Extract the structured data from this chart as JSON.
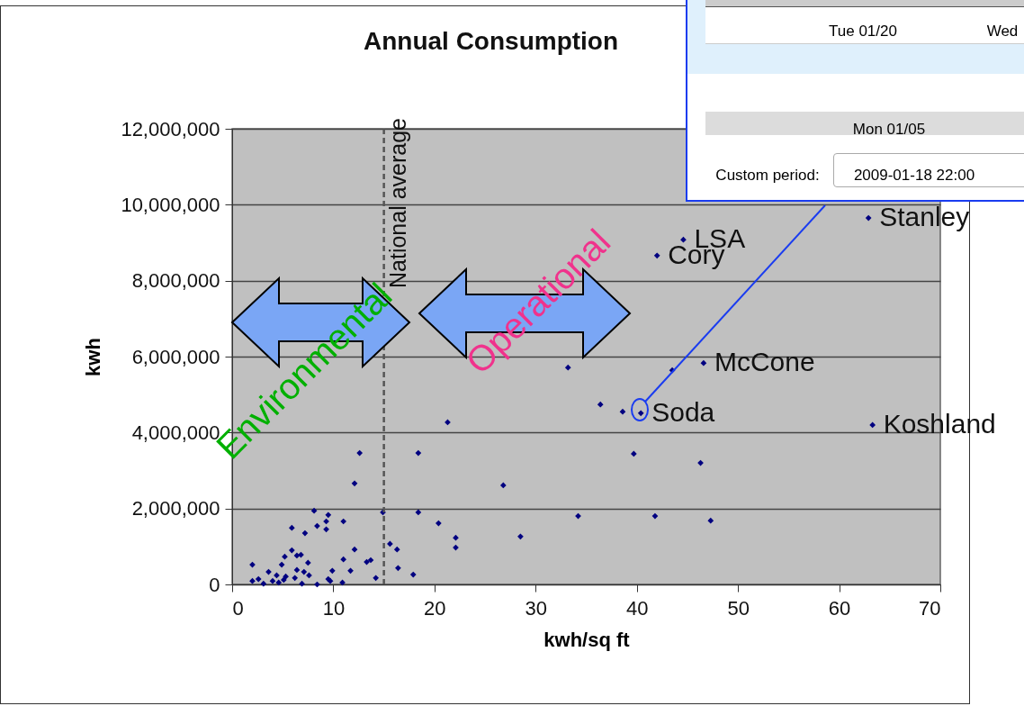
{
  "chart_data": {
    "type": "scatter",
    "title": "Annual Consumption",
    "xlabel": "kwh/sq ft",
    "ylabel": "kwh",
    "x": [
      12.6,
      18.4,
      12.1,
      8.1,
      9.5,
      9.3,
      9.3,
      11.0,
      14.9,
      18.4,
      20.4,
      5.9,
      8.4,
      7.2,
      15.6,
      16.3,
      12.1,
      5.9,
      5.2,
      6.4,
      6.8,
      4.9,
      7.5,
      11.0,
      13.3,
      13.7,
      2.0,
      16.4,
      17.9,
      3.6,
      6.4,
      7.1,
      9.9,
      11.7,
      4.4,
      5.3,
      6.2,
      7.6,
      9.5,
      14.2,
      2.0,
      2.6,
      3.1,
      4.0,
      4.6,
      5.1,
      6.9,
      8.4,
      9.7,
      10.9,
      33.2,
      36.4,
      38.6,
      40.4,
      21.3,
      43.5,
      46.6,
      39.7,
      46.3,
      26.8,
      22.1,
      22.1,
      34.2,
      41.8,
      47.3,
      28.5,
      44.6,
      42.0,
      62.9,
      63.3
    ],
    "series": [
      {
        "color": "#000080",
        "values": [
          3460000,
          3460000,
          2660000,
          1940000,
          1830000,
          1660000,
          1450000,
          1660000,
          1900000,
          1900000,
          1610000,
          1490000,
          1540000,
          1350000,
          1070000,
          920000,
          920000,
          900000,
          730000,
          760000,
          780000,
          520000,
          570000,
          660000,
          590000,
          640000,
          520000,
          430000,
          260000,
          330000,
          380000,
          330000,
          360000,
          360000,
          240000,
          210000,
          170000,
          240000,
          140000,
          170000,
          90000,
          140000,
          20000,
          90000,
          50000,
          120000,
          20000,
          0,
          90000,
          50000,
          5710000,
          4740000,
          4550000,
          4510000,
          4270000,
          5640000,
          5830000,
          3440000,
          3200000,
          2610000,
          1230000,
          970000,
          1800000,
          1800000,
          1680000,
          1260000,
          9080000,
          8660000,
          9650000,
          4200000
        ]
      }
    ],
    "xlim": [
      0,
      70
    ],
    "xticks": [
      0,
      10,
      20,
      30,
      40,
      50,
      60,
      70
    ],
    "ylim": [
      0,
      12000000
    ],
    "yticks": [
      0,
      {
        "value": 2000000,
        "label": "2,000,000"
      },
      {
        "value": 4000000,
        "label": "4,000,000"
      },
      {
        "value": 6000000,
        "label": "6,000,000"
      },
      {
        "value": 8000000,
        "label": "8,000,000"
      },
      {
        "value": 10000000,
        "label": "10,000,000"
      },
      {
        "value": 12000000,
        "label": "12,000,000"
      }
    ],
    "grid": "y",
    "marker": "diamond",
    "ref_lines": [
      {
        "axis": "x",
        "value": 15,
        "label": "National average",
        "line_style": "dashed",
        "color": "#555555"
      }
    ],
    "annotations": [
      {
        "text": "LSA",
        "x": 44.6,
        "y": 9080000
      },
      {
        "text": "Cory",
        "x": 42.0,
        "y": 8660000
      },
      {
        "text": "Stanley",
        "x": 62.9,
        "y": 9650000
      },
      {
        "text": "McCone",
        "x": 46.6,
        "y": 5830000
      },
      {
        "text": "Soda",
        "x": 40.4,
        "y": 4510000
      },
      {
        "text": "Koshland",
        "x": 63.3,
        "y": 4200000
      },
      "Environmental",
      "Operational",
      "Tue 01/20",
      "Wed",
      "Mon 01/05",
      "Custom period:",
      "2009-01-18 22:00"
    ]
  }
}
